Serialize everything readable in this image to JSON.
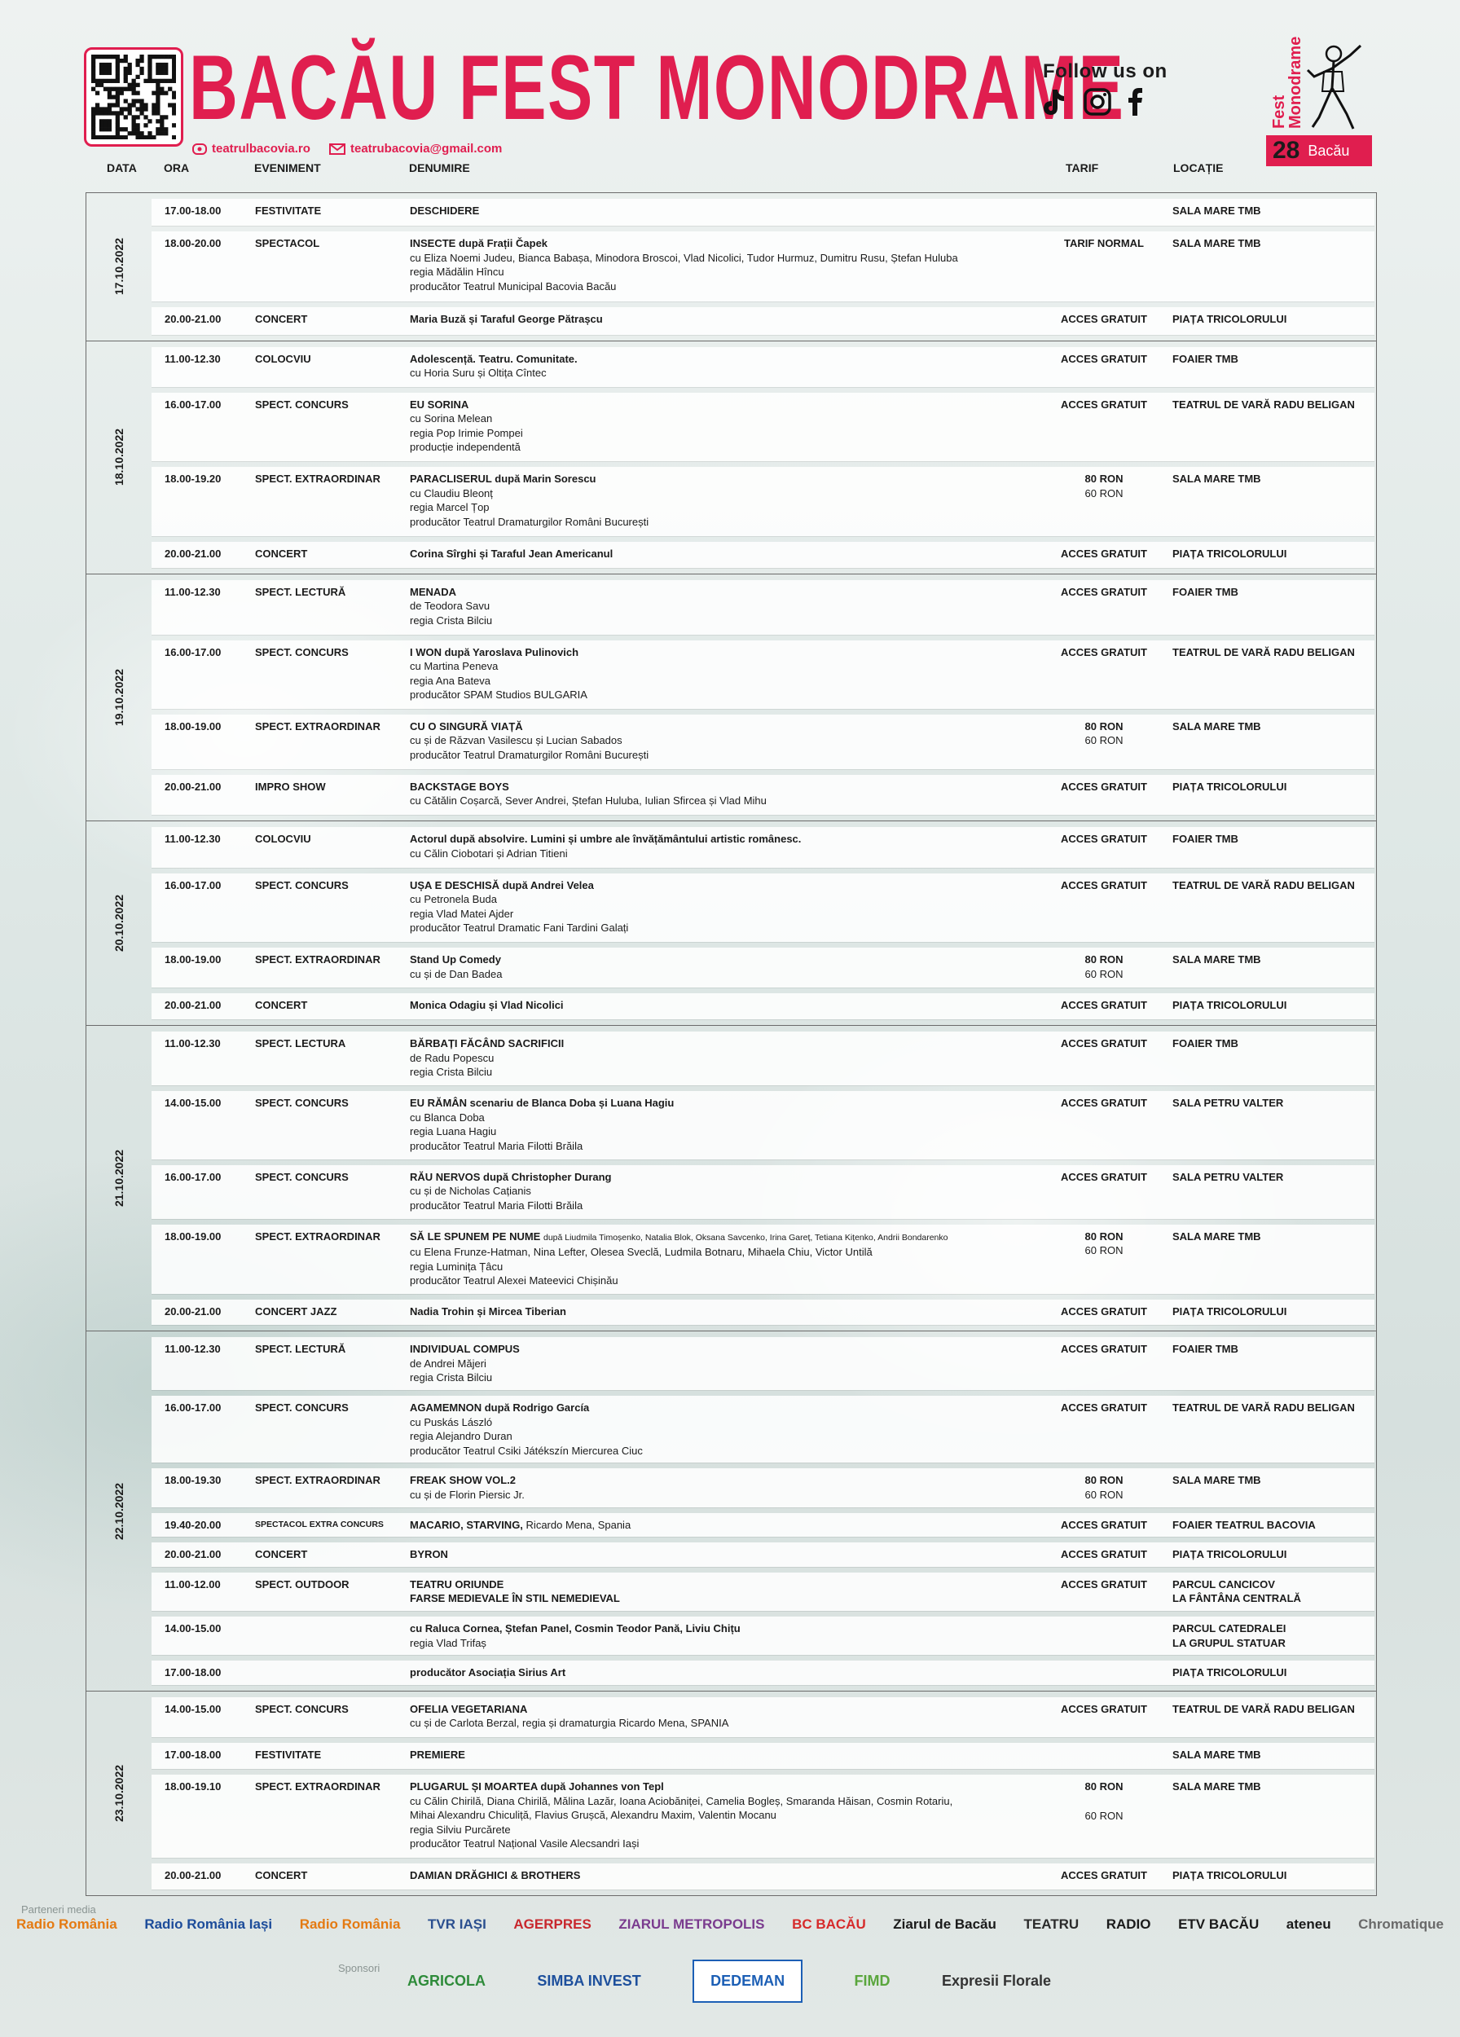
{
  "header": {
    "title": "BACĂU FEST MONODRAME",
    "website": "teatrulbacovia.ro",
    "email": "teatrubacovia@gmail.com",
    "follow": "Follow us on",
    "logo": {
      "line1": "Fest",
      "line2": "Monodrame",
      "number": "28",
      "city": "Bacău"
    }
  },
  "columns": [
    "DATA",
    "ORA",
    "EVENIMENT",
    "DENUMIRE",
    "TARIF",
    "LOCAȚIE"
  ],
  "days": [
    {
      "date": "17.10.2022",
      "events": [
        {
          "time": "17.00-18.00",
          "type": "FESTIVITATE",
          "bold": [
            "DESCHIDERE"
          ],
          "location": [
            "SALA MARE TMB"
          ]
        },
        {
          "time": "18.00-20.00",
          "type": "SPECTACOL",
          "bold": [
            "INSECTE după Frații Čapek"
          ],
          "lines": [
            "cu Eliza Noemi Judeu, Bianca Babașa, Minodora Broscoi, Vlad Nicolici, Tudor Hurmuz, Dumitru Rusu, Ștefan Huluba",
            "regia Mădălin Hîncu",
            "producător Teatrul Municipal Bacovia Bacău"
          ],
          "tarif": [
            "TARIF NORMAL"
          ],
          "location": [
            "SALA MARE TMB"
          ]
        },
        {
          "time": "20.00-21.00",
          "type": "CONCERT",
          "bold": [
            "Maria Buză și Taraful George Pătrașcu"
          ],
          "tarif": [
            "ACCES GRATUIT"
          ],
          "location": [
            "PIAȚA TRICOLORULUI"
          ]
        }
      ]
    },
    {
      "date": "18.10.2022",
      "events": [
        {
          "time": "11.00-12.30",
          "type": "COLOCVIU",
          "bold": [
            "Adolescență. Teatru. Comunitate."
          ],
          "lines": [
            "cu Horia Suru și Oltița Cîntec"
          ],
          "tarif": [
            "ACCES GRATUIT"
          ],
          "location": [
            "FOAIER TMB"
          ]
        },
        {
          "time": "16.00-17.00",
          "type": "SPECT. CONCURS",
          "bold": [
            "EU SORINA"
          ],
          "lines": [
            "cu Sorina Melean",
            "regia Pop Irimie Pompei",
            "producție independentă"
          ],
          "tarif": [
            "ACCES GRATUIT"
          ],
          "location": [
            "TEATRUL DE VARĂ RADU BELIGAN"
          ]
        },
        {
          "time": "18.00-19.20",
          "type": "SPECT. EXTRAORDINAR",
          "bold": [
            "PARACLISERUL după Marin Sorescu"
          ],
          "lines": [
            "cu Claudiu Bleonț",
            "regia Marcel Țop",
            "producător Teatrul Dramaturgilor Români București"
          ],
          "tarif": [
            "80 RON",
            "60 RON"
          ],
          "location": [
            "SALA MARE TMB"
          ]
        },
        {
          "time": "20.00-21.00",
          "type": "CONCERT",
          "bold": [
            "Corina Sîrghi și Taraful Jean Americanul"
          ],
          "tarif": [
            "ACCES GRATUIT"
          ],
          "location": [
            "PIAȚA TRICOLORULUI"
          ]
        }
      ]
    },
    {
      "date": "19.10.2022",
      "events": [
        {
          "time": "11.00-12.30",
          "type": "SPECT. LECTURĂ",
          "bold": [
            "MENADA"
          ],
          "lines": [
            "de Teodora Savu",
            "regia Crista Bilciu"
          ],
          "tarif": [
            "ACCES GRATUIT"
          ],
          "location": [
            "FOAIER TMB"
          ]
        },
        {
          "time": "16.00-17.00",
          "type": "SPECT. CONCURS",
          "bold": [
            "I WON după Yaroslava Pulinovich"
          ],
          "lines": [
            "cu Martina Peneva",
            "regia Ana Bateva",
            "producător SPAM Studios BULGARIA"
          ],
          "tarif": [
            "ACCES GRATUIT"
          ],
          "location": [
            "TEATRUL DE VARĂ RADU BELIGAN"
          ]
        },
        {
          "time": "18.00-19.00",
          "type": "SPECT. EXTRAORDINAR",
          "bold": [
            "CU O SINGURĂ VIAȚĂ"
          ],
          "lines": [
            "cu și de Răzvan Vasilescu și Lucian Sabados",
            "producător Teatrul Dramaturgilor Români București"
          ],
          "tarif": [
            "80 RON",
            "60 RON"
          ],
          "location": [
            "SALA MARE TMB"
          ]
        },
        {
          "time": "20.00-21.00",
          "type": "IMPRO SHOW",
          "bold": [
            "BACKSTAGE BOYS"
          ],
          "lines": [
            "cu Cătălin Coșarcă, Sever Andrei, Ștefan Huluba, Iulian Sfircea și Vlad Mihu"
          ],
          "tarif": [
            "ACCES GRATUIT"
          ],
          "location": [
            "PIAȚA TRICOLORULUI"
          ]
        }
      ]
    },
    {
      "date": "20.10.2022",
      "events": [
        {
          "time": "11.00-12.30",
          "type": "COLOCVIU",
          "bold": [
            "Actorul după absolvire. Lumini și umbre ale învățământului artistic românesc."
          ],
          "lines": [
            "cu Călin Ciobotari și Adrian Titieni"
          ],
          "tarif": [
            "ACCES GRATUIT"
          ],
          "location": [
            "FOAIER TMB"
          ]
        },
        {
          "time": "16.00-17.00",
          "type": "SPECT. CONCURS",
          "bold": [
            "UȘA E DESCHISĂ după Andrei Velea"
          ],
          "lines": [
            "cu Petronela Buda",
            "regia Vlad Matei Ajder",
            "producător Teatrul Dramatic Fani Tardini Galați"
          ],
          "tarif": [
            "ACCES GRATUIT"
          ],
          "location": [
            "TEATRUL DE VARĂ RADU BELIGAN"
          ]
        },
        {
          "time": "18.00-19.00",
          "type": "SPECT. EXTRAORDINAR",
          "bold": [
            "Stand Up Comedy"
          ],
          "lines": [
            "cu și de Dan Badea"
          ],
          "tarif": [
            "80 RON",
            "60 RON"
          ],
          "location": [
            "SALA MARE TMB"
          ]
        },
        {
          "time": "20.00-21.00",
          "type": "CONCERT",
          "bold": [
            "Monica Odagiu și Vlad Nicolici"
          ],
          "tarif": [
            "ACCES GRATUIT"
          ],
          "location": [
            "PIAȚA TRICOLORULUI"
          ]
        }
      ]
    },
    {
      "date": "21.10.2022",
      "events": [
        {
          "time": "11.00-12.30",
          "type": "SPECT. LECTURA",
          "bold": [
            "BĂRBAȚI FĂCÂND SACRIFICII"
          ],
          "lines": [
            "de Radu Popescu",
            "regia Crista Bilciu"
          ],
          "tarif": [
            "ACCES GRATUIT"
          ],
          "location": [
            "FOAIER TMB"
          ]
        },
        {
          "time": "14.00-15.00",
          "type": "SPECT. CONCURS",
          "bold": [
            "EU RĂMÂN scenariu de Blanca Doba și Luana Hagiu"
          ],
          "lines": [
            "cu Blanca Doba",
            "regia Luana Hagiu",
            "producător Teatrul Maria Filotti Brăila"
          ],
          "tarif": [
            "ACCES GRATUIT"
          ],
          "location": [
            "SALA PETRU VALTER"
          ]
        },
        {
          "time": "16.00-17.00",
          "type": "SPECT. CONCURS",
          "bold": [
            "RĂU NERVOS după Christopher Durang"
          ],
          "lines": [
            "cu și de Nicholas Cațianis",
            "producător Teatrul Maria Filotti Brăila"
          ],
          "tarif": [
            "ACCES GRATUIT"
          ],
          "location": [
            "SALA PETRU VALTER"
          ]
        },
        {
          "time": "18.00-19.00",
          "type": "SPECT. EXTRAORDINAR",
          "bold": [
            "SĂ LE SPUNEM PE NUME"
          ],
          "extra": "după Liudmila Timoșenko, Natalia Blok, Oksana Savcenko, Irina Gareț, Tetiana Kițenko, Andrii Bondarenko",
          "lines": [
            "cu Elena Frunze-Hatman, Nina Lefter, Olesea Sveclă, Ludmila Botnaru, Mihaela Chiu, Victor Untilă",
            "regia Luminița Țâcu",
            "producător Teatrul Alexei Mateevici Chișinău"
          ],
          "tarif": [
            "80 RON",
            "60 RON"
          ],
          "location": [
            "SALA MARE TMB"
          ]
        },
        {
          "time": "20.00-21.00",
          "type": "CONCERT JAZZ",
          "bold": [
            "Nadia Trohin și Mircea Tiberian"
          ],
          "tarif": [
            "ACCES GRATUIT"
          ],
          "location": [
            "PIAȚA TRICOLORULUI"
          ]
        }
      ]
    },
    {
      "date": "22.10.2022",
      "events": [
        {
          "time": "11.00-12.30",
          "type": "SPECT. LECTURĂ",
          "bold": [
            "INDIVIDUAL COMPUS"
          ],
          "lines": [
            "de Andrei Măjeri",
            "regia Crista Bilciu"
          ],
          "tarif": [
            "ACCES GRATUIT"
          ],
          "location": [
            "FOAIER TMB"
          ]
        },
        {
          "time": "16.00-17.00",
          "type": "SPECT. CONCURS",
          "bold": [
            "AGAMEMNON după Rodrigo García"
          ],
          "lines": [
            "cu Puskás László",
            "regia Alejandro Duran",
            "producător Teatrul Csiki Játékszín Miercurea Ciuc"
          ],
          "tarif": [
            "ACCES GRATUIT"
          ],
          "location": [
            "TEATRUL DE VARĂ RADU BELIGAN"
          ]
        },
        {
          "time": "18.00-19.30",
          "type": "SPECT. EXTRAORDINAR",
          "bold": [
            "FREAK SHOW VOL.2"
          ],
          "lines": [
            "cu și de Florin Piersic Jr."
          ],
          "tarif": [
            "80 RON",
            "60 RON"
          ],
          "location": [
            "SALA MARE TMB"
          ]
        },
        {
          "time": "19.40-20.00",
          "type": "SPECTACOL EXTRA CONCURS",
          "bold": [
            "MACARIO, STARVING,"
          ],
          "extra2": "Ricardo Mena, Spania",
          "tarif": [
            "ACCES GRATUIT"
          ],
          "location": [
            "FOAIER TEATRUL BACOVIA"
          ]
        },
        {
          "time": "20.00-21.00",
          "type": "CONCERT",
          "bold": [
            "BYRON"
          ],
          "tarif": [
            "ACCES GRATUIT"
          ],
          "location": [
            "PIAȚA TRICOLORULUI"
          ]
        },
        {
          "time": "11.00-12.00",
          "type": "SPECT. OUTDOOR",
          "bold": [
            "TEATRU ORIUNDE",
            "FARSE MEDIEVALE ÎN STIL NEMEDIEVAL"
          ],
          "tarif": [
            "ACCES GRATUIT"
          ],
          "location": [
            "PARCUL CANCICOV",
            "LA FÂNTÂNA CENTRALĂ"
          ]
        },
        {
          "time": "14.00-15.00",
          "bold": [
            "cu Raluca Cornea, Ștefan Panel, Cosmin Teodor Pană, Liviu Chițu"
          ],
          "lines": [
            "regia Vlad Trifaș"
          ],
          "location": [
            "PARCUL CATEDRALEI",
            "LA GRUPUL STATUAR"
          ]
        },
        {
          "time": "17.00-18.00",
          "bold": [
            "producător Asociația Sirius Art"
          ],
          "location": [
            "PIAȚA TRICOLORULUI"
          ]
        }
      ]
    },
    {
      "date": "23.10.2022",
      "events": [
        {
          "time": "14.00-15.00",
          "type": "SPECT. CONCURS",
          "bold": [
            "OFELIA VEGETARIANA"
          ],
          "lines": [
            "cu și de Carlota Berzal, regia și dramaturgia Ricardo Mena, SPANIA"
          ],
          "tarif": [
            "ACCES GRATUIT"
          ],
          "location": [
            "TEATRUL DE VARĂ RADU BELIGAN"
          ]
        },
        {
          "time": "17.00-18.00",
          "type": "FESTIVITATE",
          "bold": [
            "PREMIERE"
          ],
          "location": [
            "SALA MARE TMB"
          ]
        },
        {
          "time": "18.00-19.10",
          "type": "SPECT. EXTRAORDINAR",
          "bold": [
            "PLUGARUL ȘI MOARTEA după Johannes von Tepl"
          ],
          "lines": [
            "cu Călin Chirilă, Diana Chirilă, Mălina Lazăr, Ioana Aciobăniței, Camelia Bogleș, Smaranda Hăisan, Cosmin Rotariu,",
            "Mihai Alexandru Chiculiță, Flavius Grușcă, Alexandru Maxim, Valentin Mocanu",
            "regia Silviu Purcărete",
            "producător Teatrul Național Vasile Alecsandri Iași"
          ],
          "tarif": [
            "80 RON",
            "60 RON"
          ],
          "location": [
            "SALA MARE TMB"
          ]
        },
        {
          "time": "20.00-21.00",
          "type": "CONCERT",
          "bold": [
            "DAMIAN DRĂGHICI & BROTHERS"
          ],
          "tarif": [
            "ACCES GRATUIT"
          ],
          "location": [
            "PIAȚA TRICOLORULUI"
          ]
        }
      ]
    }
  ],
  "footer": {
    "partners_label": "Parteneri media",
    "partners": [
      "Radio România",
      "Radio România Iași",
      "Radio România",
      "TVR IAȘI",
      "AGERPRES",
      "ZIARUL METROPOLIS",
      "BC BACĂU",
      "Ziarul de Bacău",
      "TEATRU",
      "RADIO",
      "ETV BACĂU",
      "ateneu",
      "Chromatique"
    ],
    "sponsors_label": "Sponsori",
    "sponsors": [
      "AGRICOLA",
      "SIMBA INVEST",
      "DEDEMAN",
      "FIMD",
      "Expresii Florale"
    ]
  }
}
